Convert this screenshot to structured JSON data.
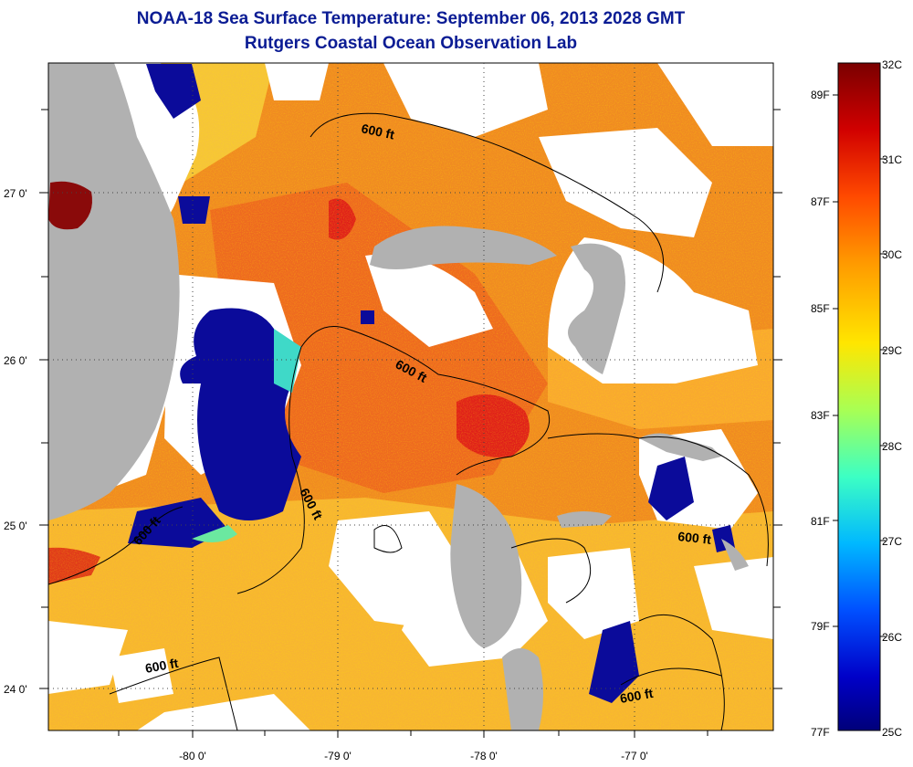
{
  "header": {
    "title": "NOAA-18 Sea Surface Temperature:  September 06, 2013 2028 GMT",
    "subtitle": "Rutgers Coastal Ocean Observation Lab"
  },
  "map": {
    "lon_labels": [
      "-80 0'",
      "-79 0'",
      "-78 0'",
      "-77 0'"
    ],
    "lat_labels": [
      "27 0'",
      "26 0'",
      "25 0'",
      "24 0'"
    ],
    "contour_labels": [
      "600 ft",
      "600 ft",
      "600 ft",
      "600 ft",
      "600 ft",
      "600 ft"
    ],
    "colors": {
      "land": "#b1b1b1",
      "cloud": "#ffffff",
      "warm": "#ef6a1e",
      "cool": "#0a0a9c"
    }
  },
  "colorbar": {
    "celsius_labels": [
      "32C",
      "31C",
      "30C",
      "29C",
      "28C",
      "27C",
      "26C",
      "25C"
    ],
    "fahrenheit_labels": [
      "89F",
      "87F",
      "85F",
      "83F",
      "81F",
      "79F",
      "77F"
    ],
    "stops": [
      "#7a0000",
      "#d10000",
      "#ff4a00",
      "#ff9a00",
      "#ffe600",
      "#a8ff54",
      "#3cffc4",
      "#00b8ff",
      "#0050ff",
      "#0000c8",
      "#00007a"
    ]
  }
}
